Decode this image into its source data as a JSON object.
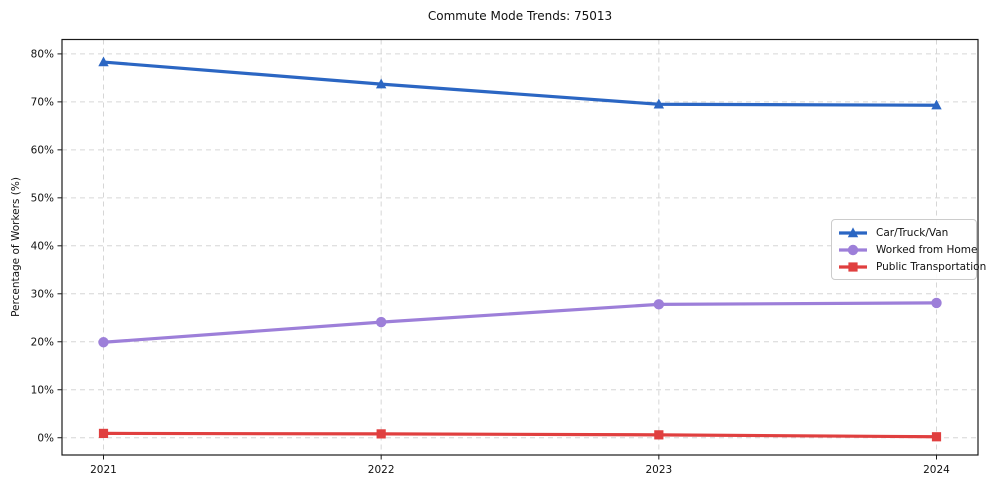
{
  "chart_data": {
    "type": "line",
    "title": "Commute Mode Trends: 75013",
    "xlabel": "",
    "ylabel": "Percentage of Workers (%)",
    "categories": [
      "2021",
      "2022",
      "2023",
      "2024"
    ],
    "series": [
      {
        "name": "Car/Truck/Van",
        "color": "#2b66c3",
        "marker": "triangle",
        "values": [
          78.3,
          73.7,
          69.5,
          69.3
        ]
      },
      {
        "name": "Worked from Home",
        "color": "#9d7fd9",
        "marker": "circle",
        "values": [
          19.9,
          24.1,
          27.8,
          28.1
        ]
      },
      {
        "name": "Public Transportation",
        "color": "#e03f3f",
        "marker": "square",
        "values": [
          0.9,
          0.8,
          0.6,
          0.2
        ]
      }
    ],
    "ylim": [
      -3.6,
      83.0
    ],
    "yticks": [
      0,
      10,
      20,
      30,
      40,
      50,
      60,
      70,
      80
    ],
    "ytick_suffix": "%",
    "grid": true,
    "legend_position": "right"
  }
}
